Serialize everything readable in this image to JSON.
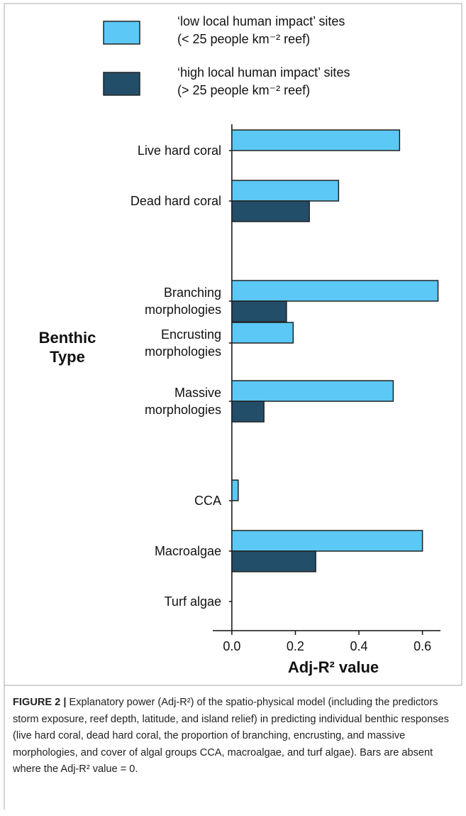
{
  "chart_data": {
    "type": "hbar",
    "categories": [
      "Live hard coral",
      "Dead hard coral",
      "Branching\nmorphologies",
      "Encrusting\nmorphologies",
      "Massive\nmorphologies",
      "CCA",
      "Macroalgae",
      "Turf algae"
    ],
    "series": [
      {
        "name": "‘low local human impact’ sites\n(< 25 people km⁻² reef)",
        "color": "#5bc8f5",
        "values": [
          0.528,
          0.336,
          0.649,
          0.193,
          0.508,
          0.02,
          0.6,
          0
        ]
      },
      {
        "name": "‘high local human impact’ sites\n(> 25 people km⁻² reef)",
        "color": "#234e6a",
        "values": [
          0,
          0.244,
          0.172,
          0,
          0.101,
          0,
          0.264,
          0
        ]
      }
    ],
    "xlim": [
      -0.06,
      0.65
    ],
    "xticks": [
      {
        "value": 0,
        "label": "0.0"
      },
      0.2,
      0.4,
      0.6
    ],
    "xlabel": "Adj-R² value",
    "ylabel": "Benthic\nType"
  },
  "caption": {
    "label": "FIGURE 2 |",
    "text": " Explanatory power (Adj-R²) of the spatio-physical model (including the predictors storm exposure, reef depth, latitude, and island relief) in predicting individual benthic responses (live hard coral, dead hard coral, the proportion of branching, encrusting, and massive morphologies, and cover of algal groups CCA, macroalgae, and turf algae). Bars are absent where the Adj-R² value = 0."
  }
}
